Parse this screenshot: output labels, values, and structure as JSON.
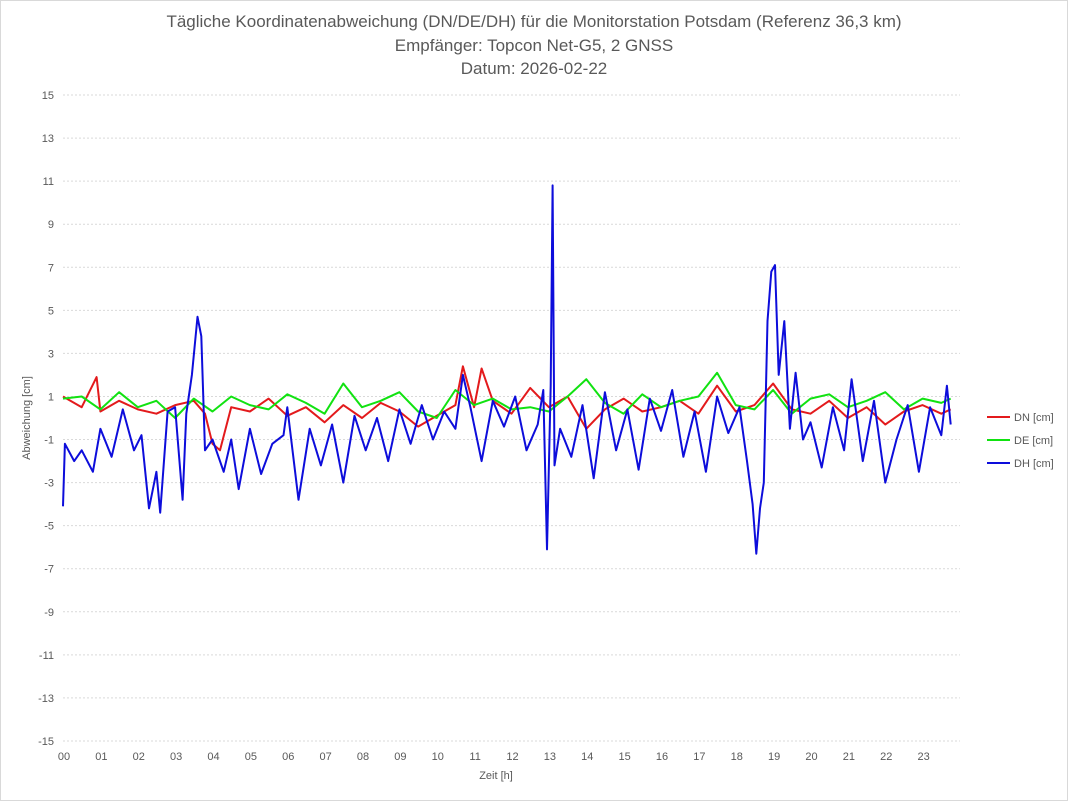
{
  "chart_data": {
    "type": "line",
    "title": "Tägliche Koordinatenabweichung (DN/DE/DH) für die Monitorstation Potsdam (Referenz 36,3 km)",
    "subtitle": "Empfänger: Topcon Net-G5, 2 GNSS",
    "date_label": "Datum: 2026-02-22",
    "xlabel": "Zeit [h]",
    "ylabel": "Abweichung [cm]",
    "xlim": [
      0,
      24
    ],
    "ylim": [
      -15,
      15
    ],
    "grid": true,
    "legend_position": "right",
    "x_ticks": [
      "00",
      "01",
      "02",
      "03",
      "04",
      "05",
      "06",
      "07",
      "08",
      "09",
      "10",
      "11",
      "12",
      "13",
      "14",
      "15",
      "16",
      "17",
      "18",
      "19",
      "20",
      "21",
      "22",
      "23"
    ],
    "y_ticks": [
      "15",
      "13",
      "11",
      "9",
      "7",
      "5",
      "3",
      "1",
      "-1",
      "-3",
      "-5",
      "-7",
      "-9",
      "-11",
      "-13",
      "-15"
    ],
    "series": [
      {
        "name": "DN [cm]",
        "color": "#e31a1c",
        "x": [
          0,
          0.5,
          0.9,
          1,
          1.5,
          2,
          2.5,
          3,
          3.5,
          3.8,
          4,
          4.2,
          4.5,
          5,
          5.5,
          6,
          6.5,
          7,
          7.5,
          8,
          8.5,
          9,
          9.5,
          10,
          10.5,
          10.7,
          11,
          11.2,
          11.5,
          12,
          12.5,
          13,
          13.5,
          14,
          14.5,
          15,
          15.5,
          16,
          16.5,
          17,
          17.5,
          18,
          18.5,
          19,
          19.5,
          20,
          20.5,
          21,
          21.5,
          22,
          22.5,
          23,
          23.5,
          23.75
        ],
        "values": [
          1.0,
          0.5,
          1.9,
          0.3,
          0.8,
          0.4,
          0.2,
          0.6,
          0.8,
          0.2,
          -1.2,
          -1.5,
          0.5,
          0.3,
          0.9,
          0.1,
          0.5,
          -0.2,
          0.6,
          0.0,
          0.7,
          0.3,
          -0.4,
          0.1,
          0.6,
          2.4,
          0.5,
          2.3,
          0.8,
          0.2,
          1.4,
          0.5,
          1.0,
          -0.5,
          0.4,
          0.9,
          0.3,
          0.5,
          0.8,
          0.2,
          1.5,
          0.3,
          0.6,
          1.6,
          0.4,
          0.2,
          0.8,
          0.0,
          0.5,
          -0.3,
          0.3,
          0.6,
          0.2,
          0.4
        ]
      },
      {
        "name": "DE [cm]",
        "color": "#11e211",
        "x": [
          0,
          0.5,
          1,
          1.5,
          2,
          2.5,
          3,
          3.5,
          4,
          4.5,
          5,
          5.5,
          6,
          6.5,
          7,
          7.5,
          8,
          8.5,
          9,
          9.5,
          10,
          10.5,
          11,
          11.5,
          12,
          12.5,
          13,
          13.5,
          14,
          14.5,
          15,
          15.5,
          16,
          16.5,
          17,
          17.5,
          18,
          18.5,
          19,
          19.5,
          20,
          20.5,
          21,
          21.5,
          22,
          22.5,
          23,
          23.5,
          23.75
        ],
        "values": [
          0.9,
          1.0,
          0.4,
          1.2,
          0.5,
          0.8,
          0.0,
          0.9,
          0.3,
          1.0,
          0.6,
          0.4,
          1.1,
          0.7,
          0.2,
          1.6,
          0.5,
          0.8,
          1.2,
          0.3,
          0.0,
          1.3,
          0.6,
          0.9,
          0.4,
          0.5,
          0.3,
          1.0,
          1.8,
          0.7,
          0.2,
          1.1,
          0.5,
          0.8,
          1.0,
          2.1,
          0.6,
          0.4,
          1.3,
          0.2,
          0.9,
          1.1,
          0.5,
          0.8,
          1.2,
          0.4,
          0.9,
          0.7,
          0.9
        ]
      },
      {
        "name": "DH [cm]",
        "color": "#0d0ddb",
        "x": [
          0,
          0.05,
          0.3,
          0.5,
          0.8,
          1,
          1.3,
          1.6,
          1.9,
          2.1,
          2.3,
          2.5,
          2.6,
          2.8,
          3,
          3.2,
          3.3,
          3.45,
          3.6,
          3.7,
          3.8,
          4,
          4.3,
          4.5,
          4.7,
          5,
          5.3,
          5.6,
          5.9,
          6,
          6.3,
          6.6,
          6.9,
          7.2,
          7.5,
          7.8,
          8.1,
          8.4,
          8.7,
          9,
          9.3,
          9.6,
          9.9,
          10.2,
          10.5,
          10.7,
          10.9,
          11.2,
          11.5,
          11.8,
          12.1,
          12.4,
          12.7,
          12.85,
          12.95,
          13.05,
          13.1,
          13.15,
          13.3,
          13.6,
          13.9,
          14.2,
          14.5,
          14.8,
          15.1,
          15.4,
          15.7,
          16,
          16.3,
          16.6,
          16.9,
          17.2,
          17.5,
          17.8,
          18.1,
          18.3,
          18.45,
          18.55,
          18.65,
          18.75,
          18.85,
          18.95,
          19.05,
          19.15,
          19.3,
          19.45,
          19.6,
          19.8,
          20,
          20.3,
          20.6,
          20.9,
          21.1,
          21.4,
          21.7,
          22,
          22.3,
          22.6,
          22.9,
          23.2,
          23.5,
          23.65,
          23.75
        ],
        "values": [
          -4.1,
          -1.2,
          -2.0,
          -1.5,
          -2.5,
          -0.5,
          -1.8,
          0.4,
          -1.5,
          -0.8,
          -4.2,
          -2.5,
          -4.4,
          0.3,
          0.5,
          -3.8,
          0.2,
          2.0,
          4.7,
          3.8,
          -1.5,
          -1.0,
          -2.5,
          -1.0,
          -3.3,
          -0.5,
          -2.6,
          -1.2,
          -0.8,
          0.5,
          -3.8,
          -0.5,
          -2.2,
          -0.3,
          -3.0,
          0.1,
          -1.5,
          0.0,
          -2.0,
          0.4,
          -1.2,
          0.6,
          -1.0,
          0.3,
          -0.5,
          2.0,
          0.5,
          -2.0,
          0.8,
          -0.4,
          1.0,
          -1.5,
          -0.3,
          1.3,
          -6.1,
          1.5,
          10.8,
          -2.2,
          -0.5,
          -1.8,
          0.6,
          -2.8,
          1.2,
          -1.5,
          0.4,
          -2.4,
          0.9,
          -0.6,
          1.3,
          -1.8,
          0.3,
          -2.5,
          1.0,
          -0.7,
          0.5,
          -2.0,
          -4.0,
          -6.3,
          -4.2,
          -3.0,
          4.5,
          6.8,
          7.1,
          2.0,
          4.5,
          -0.5,
          2.1,
          -1.0,
          -0.2,
          -2.3,
          0.5,
          -1.5,
          1.8,
          -2.0,
          0.8,
          -3.0,
          -1.0,
          0.6,
          -2.5,
          0.5,
          -0.8,
          1.5,
          -0.3
        ]
      }
    ]
  }
}
